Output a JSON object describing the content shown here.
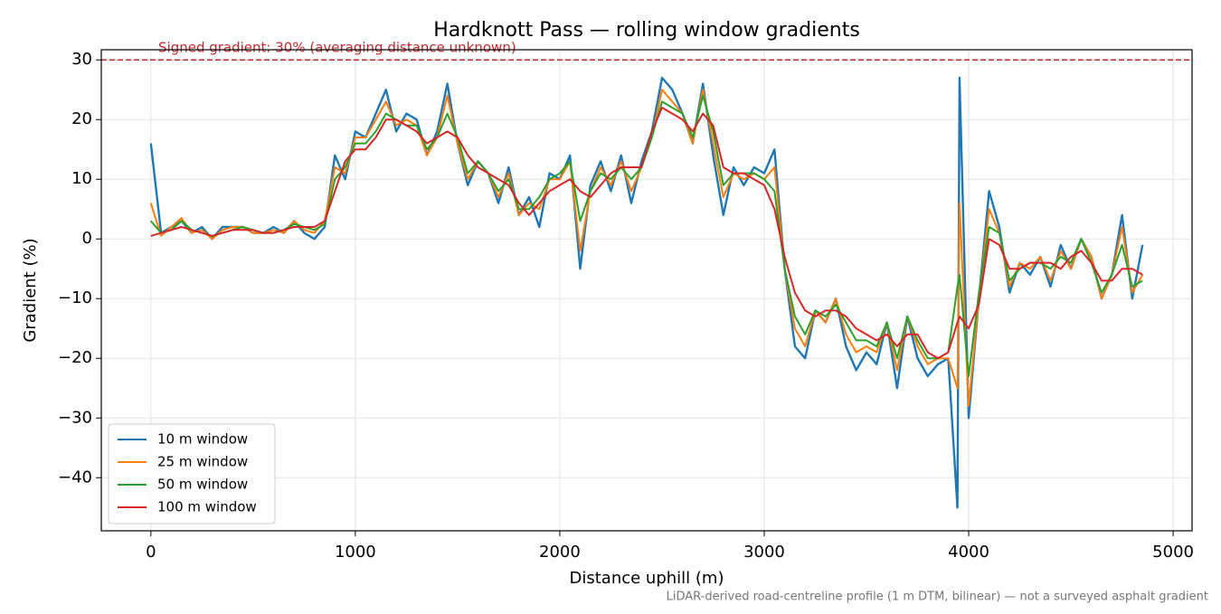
{
  "chart_data": {
    "type": "line",
    "title": "Hardknott Pass — rolling window gradients",
    "xlabel": "Distance uphill (m)",
    "ylabel": "Gradient (%)",
    "footnote": "LiDAR-derived road-centreline profile (1 m DTM, bilinear) — not a surveyed asphalt gradient",
    "hline": {
      "value": 30,
      "label": "Signed gradient: 30% (averaging distance unknown)",
      "color": "#c0282d"
    },
    "xlim": [
      -242.5,
      5092.5
    ],
    "ylim": [
      -48.9,
      31.7
    ],
    "xticks": [
      0,
      1000,
      2000,
      3000,
      4000,
      5000
    ],
    "yticks": [
      {
        "value": -40,
        "label": "−40"
      },
      {
        "value": -30,
        "label": "−30"
      },
      {
        "value": -20,
        "label": "−20"
      },
      {
        "value": -10,
        "label": "−10"
      },
      0,
      10,
      20,
      30
    ],
    "grid": true,
    "legend": "lower left",
    "x": [
      0,
      50,
      100,
      150,
      200,
      250,
      300,
      350,
      400,
      450,
      500,
      550,
      600,
      650,
      700,
      750,
      800,
      850,
      900,
      950,
      1000,
      1050,
      1100,
      1150,
      1200,
      1250,
      1300,
      1350,
      1400,
      1450,
      1500,
      1550,
      1600,
      1650,
      1700,
      1750,
      1800,
      1850,
      1900,
      1950,
      2000,
      2050,
      2100,
      2150,
      2200,
      2250,
      2300,
      2350,
      2400,
      2450,
      2500,
      2550,
      2600,
      2650,
      2700,
      2750,
      2800,
      2850,
      2900,
      2950,
      3000,
      3050,
      3100,
      3150,
      3200,
      3250,
      3300,
      3350,
      3400,
      3450,
      3500,
      3550,
      3600,
      3650,
      3700,
      3750,
      3800,
      3850,
      3900,
      3945,
      3955,
      4000,
      4050,
      4100,
      4150,
      4200,
      4250,
      4300,
      4350,
      4400,
      4450,
      4500,
      4550,
      4600,
      4650,
      4700,
      4750,
      4800,
      4850
    ],
    "series": [
      {
        "name": "10 m window",
        "color": "#1f77b4",
        "values": [
          16,
          1,
          2,
          3,
          1,
          2,
          0,
          2,
          2,
          2,
          1,
          1,
          2,
          1,
          3,
          1,
          0,
          2,
          14,
          10,
          18,
          17,
          21,
          25,
          18,
          21,
          20,
          14,
          18,
          26,
          16,
          9,
          13,
          11,
          6,
          12,
          4,
          7,
          2,
          11,
          10,
          14,
          -5,
          9,
          13,
          8,
          14,
          6,
          13,
          18,
          27,
          25,
          21,
          16,
          26,
          14,
          4,
          12,
          9,
          12,
          11,
          15,
          -5,
          -18,
          -20,
          -12,
          -14,
          -10,
          -18,
          -22,
          -19,
          -21,
          -14,
          -25,
          -13,
          -20,
          -23,
          -21,
          -20,
          -45,
          27,
          -30,
          -10,
          8,
          2,
          -9,
          -4,
          -6,
          -3,
          -8,
          -1,
          -5,
          0,
          -3,
          -10,
          -6,
          4,
          -10,
          -1
        ]
      },
      {
        "name": "25 m window",
        "color": "#ff7f0e",
        "values": [
          6,
          0.5,
          2,
          3.5,
          1,
          1.5,
          0,
          1.5,
          2,
          2,
          1,
          1,
          1.5,
          1,
          3,
          1.5,
          1,
          3,
          12,
          11,
          17,
          17,
          20,
          23,
          19,
          20,
          19,
          14,
          17,
          24,
          16,
          10,
          13,
          11,
          7,
          11,
          4,
          6,
          5,
          10,
          10,
          13,
          -2,
          8,
          12,
          9,
          13,
          8,
          12,
          17,
          25,
          23,
          21,
          16,
          25,
          16,
          7,
          11,
          10,
          11,
          10,
          12,
          -5,
          -15,
          -18,
          -12,
          -14,
          -10,
          -16,
          -19,
          -18,
          -19,
          -14,
          -22,
          -13,
          -18,
          -21,
          -20,
          -20,
          -25,
          6,
          -28,
          -10,
          5,
          1,
          -8,
          -4,
          -5,
          -3,
          -7,
          -2,
          -5,
          0,
          -3,
          -10,
          -6,
          2,
          -9,
          -6
        ]
      },
      {
        "name": "50 m window",
        "color": "#2ca02c",
        "values": [
          3,
          1,
          1.5,
          3,
          1.5,
          1,
          0.5,
          1,
          1.5,
          2,
          1.5,
          1,
          1,
          1.5,
          2.5,
          2,
          1.5,
          2.5,
          10,
          12,
          16,
          16,
          18,
          21,
          20,
          19,
          19,
          15,
          17,
          21,
          17,
          11,
          13,
          11,
          8,
          10,
          5,
          5,
          7,
          10,
          11,
          13,
          3,
          8,
          11,
          10,
          12,
          10,
          12,
          17,
          23,
          22,
          21,
          17,
          24,
          18,
          9,
          11,
          11,
          11,
          10,
          8,
          -5,
          -13,
          -16,
          -12,
          -13,
          -11,
          -14,
          -17,
          -17,
          -18,
          -14,
          -20,
          -13,
          -17,
          -20,
          -20,
          -19,
          -8,
          -6,
          -23,
          -9,
          2,
          1,
          -7,
          -5,
          -4,
          -4,
          -5,
          -3,
          -4,
          0,
          -4,
          -9,
          -6,
          -1,
          -8,
          -7
        ]
      },
      {
        "name": "100 m window",
        "color": "#d62728",
        "values": [
          0.5,
          1,
          1.5,
          2,
          1.5,
          1,
          0.5,
          1,
          1.5,
          1.5,
          1.5,
          1,
          1,
          1.5,
          2,
          2,
          2,
          3,
          8,
          13,
          15,
          15,
          17,
          20,
          20,
          19,
          18,
          16,
          17,
          18,
          17,
          14,
          12,
          11,
          10,
          9,
          6,
          4,
          6,
          8,
          9,
          10,
          8,
          7,
          9,
          11,
          12,
          12,
          12,
          18,
          22,
          21,
          20,
          18,
          21,
          19,
          12,
          11,
          11,
          10,
          9,
          5,
          -3,
          -9,
          -12,
          -13,
          -12,
          -12,
          -13,
          -15,
          -16,
          -17,
          -16,
          -18,
          -16,
          -16,
          -19,
          -20,
          -19,
          -14,
          -13,
          -15,
          -11,
          0,
          -1,
          -5,
          -5,
          -4,
          -4,
          -4,
          -5,
          -3,
          -2,
          -4,
          -7,
          -7,
          -5,
          -5,
          -6
        ]
      }
    ]
  }
}
